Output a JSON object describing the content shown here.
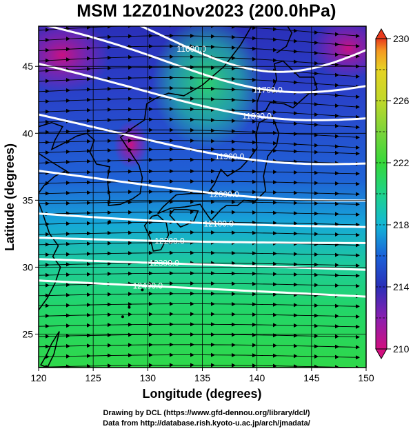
{
  "title": "MSM 12Z01Nov2023 (200.0hPa)",
  "xlabel": "Longitude (degrees)",
  "ylabel": "Latitude  (degrees)",
  "x_ticks": [
    "120",
    "125",
    "130",
    "135",
    "140",
    "145",
    "150"
  ],
  "y_ticks": [
    "45",
    "40",
    "35",
    "30",
    "25"
  ],
  "colorbar": {
    "min": 210,
    "max": 230,
    "tick_labels": [
      "230",
      "226",
      "222",
      "218",
      "214",
      "210"
    ],
    "colors": [
      "#d10f7f",
      "#8b1fb0",
      "#2a2fb8",
      "#1a62d9",
      "#13b7d6",
      "#1ed38a",
      "#36d83a",
      "#7bd43a",
      "#c0d82a",
      "#e6d324",
      "#f59a22",
      "#e83a1c"
    ]
  },
  "contours": [
    {
      "label": "11600.0",
      "lat_at_150": 46.5
    },
    {
      "label": "11700.0",
      "lat_at_150": 43.7
    },
    {
      "label": "11800.0",
      "lat_at_150": 41.2
    },
    {
      "label": "11900.0",
      "lat_at_150": 37.8
    },
    {
      "label": "12000.0",
      "lat_at_150": 35.0
    },
    {
      "label": "12100.0",
      "lat_at_150": 33.0
    },
    {
      "label": "12200.0",
      "lat_at_150": 31.8
    },
    {
      "label": "12300.0",
      "lat_at_150": 29.8
    },
    {
      "label": "12400.0",
      "lat_at_150": 27.8
    }
  ],
  "credits": {
    "line1": "Drawing by DCL (https://www.gfd-dennou.org/library/dcl/)",
    "line2": "Data from http://database.rish.kyoto-u.ac.jp/arch/jmadata/"
  }
}
